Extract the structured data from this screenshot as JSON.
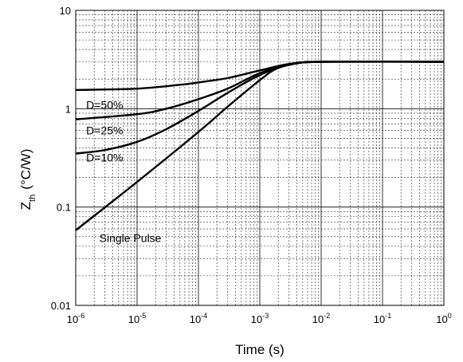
{
  "chart_data": {
    "type": "line",
    "title": "",
    "xlabel": "Time (s)",
    "ylabel": {
      "main": "Z",
      "sub": "th",
      "unit": "(°C/W)"
    },
    "xscale": "log",
    "yscale": "log",
    "xlim": [
      1e-06,
      1
    ],
    "ylim": [
      0.01,
      10
    ],
    "grid": true,
    "x_ticks": [
      {
        "base": "10",
        "exp": "-6",
        "value": 1e-06
      },
      {
        "base": "10",
        "exp": "-5",
        "value": 1e-05
      },
      {
        "base": "10",
        "exp": "-4",
        "value": 0.0001
      },
      {
        "base": "10",
        "exp": "-3",
        "value": 0.001
      },
      {
        "base": "10",
        "exp": "-2",
        "value": 0.01
      },
      {
        "base": "10",
        "exp": "-1",
        "value": 0.1
      },
      {
        "base": "10",
        "exp": "0",
        "value": 1
      }
    ],
    "y_ticks": [
      {
        "label": "0.01",
        "value": 0.01
      },
      {
        "label": "0.1",
        "value": 0.1
      },
      {
        "label": "1",
        "value": 1
      },
      {
        "label": "10",
        "value": 10
      }
    ],
    "series": [
      {
        "name": "D=50%",
        "label_at": [
          1.1e-06,
          1.0
        ],
        "x": [
          1e-06,
          1e-05,
          5e-05,
          0.0001,
          0.0003,
          0.001,
          0.003,
          0.01,
          1
        ],
        "y": [
          1.55,
          1.6,
          1.75,
          1.85,
          2.05,
          2.45,
          2.85,
          3.0,
          3.0
        ]
      },
      {
        "name": "D=25%",
        "label_at": [
          1.1e-06,
          0.55
        ],
        "x": [
          1e-06,
          1e-05,
          3e-05,
          0.0001,
          0.0003,
          0.001,
          0.003,
          0.01,
          1
        ],
        "y": [
          0.78,
          0.88,
          1.0,
          1.25,
          1.6,
          2.3,
          2.8,
          3.0,
          3.0
        ]
      },
      {
        "name": "D=10%",
        "label_at": [
          1.1e-06,
          0.29
        ],
        "x": [
          1e-06,
          3e-06,
          1e-05,
          3e-05,
          0.0001,
          0.0003,
          0.001,
          0.003,
          0.01,
          1
        ],
        "y": [
          0.35,
          0.38,
          0.46,
          0.62,
          0.95,
          1.45,
          2.2,
          2.8,
          3.0,
          3.0
        ]
      },
      {
        "name": "Single Pulse",
        "label_at": [
          1.8e-06,
          0.044
        ],
        "x": [
          1e-06,
          1e-05,
          0.0001,
          0.0003,
          0.001,
          0.002,
          0.005,
          0.01,
          1
        ],
        "y": [
          0.058,
          0.18,
          0.58,
          1.05,
          1.95,
          2.6,
          2.95,
          3.0,
          3.0
        ]
      }
    ],
    "colors": {
      "axis": "#000000",
      "major_grid": "#000000",
      "minor_grid": "#000000",
      "curve": "#000000"
    }
  }
}
